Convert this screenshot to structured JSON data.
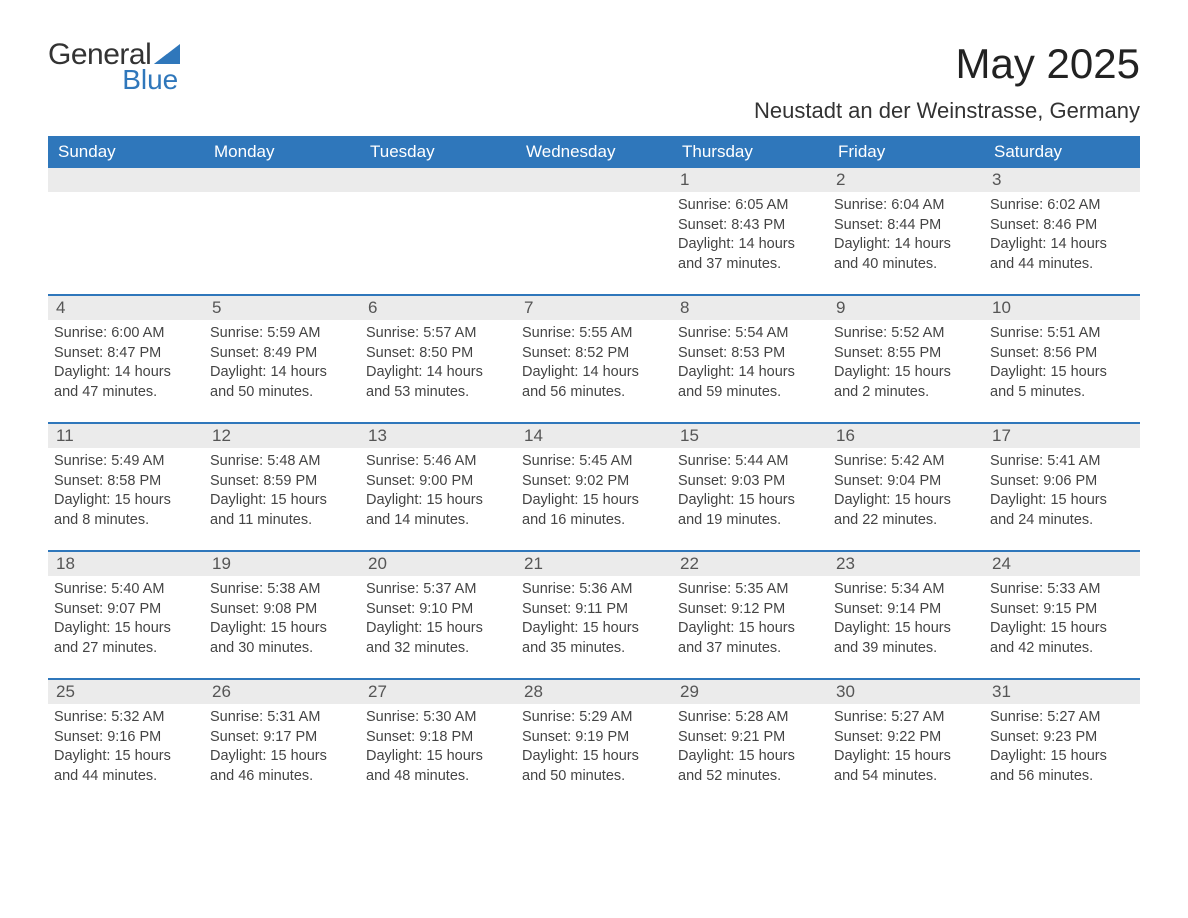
{
  "brand": {
    "line1": "General",
    "line2": "Blue",
    "accent_color": "#2f77bb"
  },
  "title": "May 2025",
  "subtitle": "Neustadt an der Weinstrasse, Germany",
  "colors": {
    "header_bg": "#2f77bb",
    "header_text": "#ffffff",
    "daynum_bg": "#ebebeb",
    "text": "#444444",
    "border": "#2f77bb",
    "background": "#ffffff"
  },
  "fontsize": {
    "title": 42,
    "subtitle": 22,
    "dow": 17,
    "daynum": 17,
    "body": 14.5
  },
  "days_of_week": [
    "Sunday",
    "Monday",
    "Tuesday",
    "Wednesday",
    "Thursday",
    "Friday",
    "Saturday"
  ],
  "weeks": [
    [
      {
        "n": "",
        "sunrise": "",
        "sunset": "",
        "daylight": ""
      },
      {
        "n": "",
        "sunrise": "",
        "sunset": "",
        "daylight": ""
      },
      {
        "n": "",
        "sunrise": "",
        "sunset": "",
        "daylight": ""
      },
      {
        "n": "",
        "sunrise": "",
        "sunset": "",
        "daylight": ""
      },
      {
        "n": "1",
        "sunrise": "Sunrise: 6:05 AM",
        "sunset": "Sunset: 8:43 PM",
        "daylight": "Daylight: 14 hours and 37 minutes."
      },
      {
        "n": "2",
        "sunrise": "Sunrise: 6:04 AM",
        "sunset": "Sunset: 8:44 PM",
        "daylight": "Daylight: 14 hours and 40 minutes."
      },
      {
        "n": "3",
        "sunrise": "Sunrise: 6:02 AM",
        "sunset": "Sunset: 8:46 PM",
        "daylight": "Daylight: 14 hours and 44 minutes."
      }
    ],
    [
      {
        "n": "4",
        "sunrise": "Sunrise: 6:00 AM",
        "sunset": "Sunset: 8:47 PM",
        "daylight": "Daylight: 14 hours and 47 minutes."
      },
      {
        "n": "5",
        "sunrise": "Sunrise: 5:59 AM",
        "sunset": "Sunset: 8:49 PM",
        "daylight": "Daylight: 14 hours and 50 minutes."
      },
      {
        "n": "6",
        "sunrise": "Sunrise: 5:57 AM",
        "sunset": "Sunset: 8:50 PM",
        "daylight": "Daylight: 14 hours and 53 minutes."
      },
      {
        "n": "7",
        "sunrise": "Sunrise: 5:55 AM",
        "sunset": "Sunset: 8:52 PM",
        "daylight": "Daylight: 14 hours and 56 minutes."
      },
      {
        "n": "8",
        "sunrise": "Sunrise: 5:54 AM",
        "sunset": "Sunset: 8:53 PM",
        "daylight": "Daylight: 14 hours and 59 minutes."
      },
      {
        "n": "9",
        "sunrise": "Sunrise: 5:52 AM",
        "sunset": "Sunset: 8:55 PM",
        "daylight": "Daylight: 15 hours and 2 minutes."
      },
      {
        "n": "10",
        "sunrise": "Sunrise: 5:51 AM",
        "sunset": "Sunset: 8:56 PM",
        "daylight": "Daylight: 15 hours and 5 minutes."
      }
    ],
    [
      {
        "n": "11",
        "sunrise": "Sunrise: 5:49 AM",
        "sunset": "Sunset: 8:58 PM",
        "daylight": "Daylight: 15 hours and 8 minutes."
      },
      {
        "n": "12",
        "sunrise": "Sunrise: 5:48 AM",
        "sunset": "Sunset: 8:59 PM",
        "daylight": "Daylight: 15 hours and 11 minutes."
      },
      {
        "n": "13",
        "sunrise": "Sunrise: 5:46 AM",
        "sunset": "Sunset: 9:00 PM",
        "daylight": "Daylight: 15 hours and 14 minutes."
      },
      {
        "n": "14",
        "sunrise": "Sunrise: 5:45 AM",
        "sunset": "Sunset: 9:02 PM",
        "daylight": "Daylight: 15 hours and 16 minutes."
      },
      {
        "n": "15",
        "sunrise": "Sunrise: 5:44 AM",
        "sunset": "Sunset: 9:03 PM",
        "daylight": "Daylight: 15 hours and 19 minutes."
      },
      {
        "n": "16",
        "sunrise": "Sunrise: 5:42 AM",
        "sunset": "Sunset: 9:04 PM",
        "daylight": "Daylight: 15 hours and 22 minutes."
      },
      {
        "n": "17",
        "sunrise": "Sunrise: 5:41 AM",
        "sunset": "Sunset: 9:06 PM",
        "daylight": "Daylight: 15 hours and 24 minutes."
      }
    ],
    [
      {
        "n": "18",
        "sunrise": "Sunrise: 5:40 AM",
        "sunset": "Sunset: 9:07 PM",
        "daylight": "Daylight: 15 hours and 27 minutes."
      },
      {
        "n": "19",
        "sunrise": "Sunrise: 5:38 AM",
        "sunset": "Sunset: 9:08 PM",
        "daylight": "Daylight: 15 hours and 30 minutes."
      },
      {
        "n": "20",
        "sunrise": "Sunrise: 5:37 AM",
        "sunset": "Sunset: 9:10 PM",
        "daylight": "Daylight: 15 hours and 32 minutes."
      },
      {
        "n": "21",
        "sunrise": "Sunrise: 5:36 AM",
        "sunset": "Sunset: 9:11 PM",
        "daylight": "Daylight: 15 hours and 35 minutes."
      },
      {
        "n": "22",
        "sunrise": "Sunrise: 5:35 AM",
        "sunset": "Sunset: 9:12 PM",
        "daylight": "Daylight: 15 hours and 37 minutes."
      },
      {
        "n": "23",
        "sunrise": "Sunrise: 5:34 AM",
        "sunset": "Sunset: 9:14 PM",
        "daylight": "Daylight: 15 hours and 39 minutes."
      },
      {
        "n": "24",
        "sunrise": "Sunrise: 5:33 AM",
        "sunset": "Sunset: 9:15 PM",
        "daylight": "Daylight: 15 hours and 42 minutes."
      }
    ],
    [
      {
        "n": "25",
        "sunrise": "Sunrise: 5:32 AM",
        "sunset": "Sunset: 9:16 PM",
        "daylight": "Daylight: 15 hours and 44 minutes."
      },
      {
        "n": "26",
        "sunrise": "Sunrise: 5:31 AM",
        "sunset": "Sunset: 9:17 PM",
        "daylight": "Daylight: 15 hours and 46 minutes."
      },
      {
        "n": "27",
        "sunrise": "Sunrise: 5:30 AM",
        "sunset": "Sunset: 9:18 PM",
        "daylight": "Daylight: 15 hours and 48 minutes."
      },
      {
        "n": "28",
        "sunrise": "Sunrise: 5:29 AM",
        "sunset": "Sunset: 9:19 PM",
        "daylight": "Daylight: 15 hours and 50 minutes."
      },
      {
        "n": "29",
        "sunrise": "Sunrise: 5:28 AM",
        "sunset": "Sunset: 9:21 PM",
        "daylight": "Daylight: 15 hours and 52 minutes."
      },
      {
        "n": "30",
        "sunrise": "Sunrise: 5:27 AM",
        "sunset": "Sunset: 9:22 PM",
        "daylight": "Daylight: 15 hours and 54 minutes."
      },
      {
        "n": "31",
        "sunrise": "Sunrise: 5:27 AM",
        "sunset": "Sunset: 9:23 PM",
        "daylight": "Daylight: 15 hours and 56 minutes."
      }
    ]
  ]
}
